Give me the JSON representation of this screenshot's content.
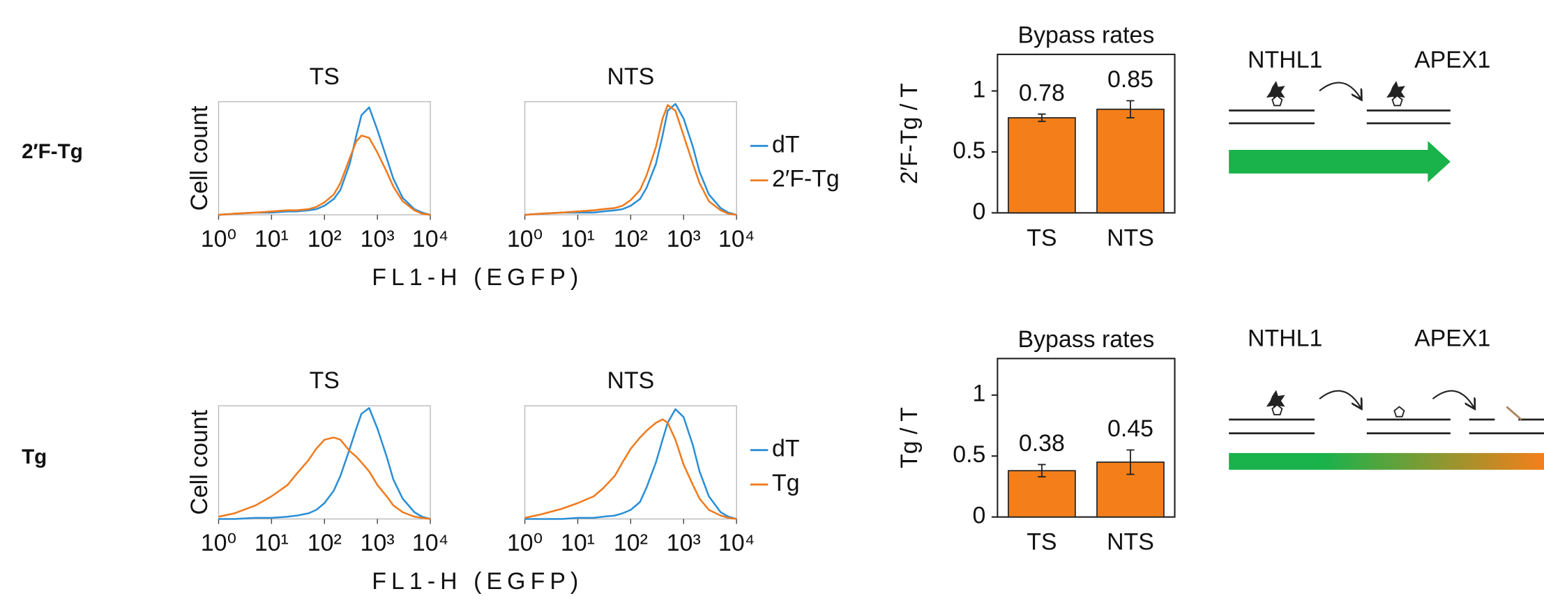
{
  "rows": [
    {
      "label": "2′F-Tg",
      "enzymes": [
        "NTHL1",
        "APEX1"
      ]
    },
    {
      "label": "Tg",
      "enzymes": [
        "NTHL1",
        "APEX1"
      ]
    }
  ],
  "chart_data": [
    {
      "type": "line",
      "log_x": true,
      "xlabel": "FL1-H (EGFP)",
      "ylabel": "Cell count",
      "x": [
        1,
        2,
        5,
        10,
        20,
        30,
        50,
        70,
        100,
        150,
        200,
        300,
        400,
        500,
        700,
        1000,
        1500,
        2000,
        3000,
        5000,
        7000,
        10000
      ],
      "xlim": [
        1,
        10000
      ],
      "xticks": [
        {
          "value": 1,
          "label": "10⁰"
        },
        {
          "value": 10,
          "label": "10¹"
        },
        {
          "value": 100,
          "label": "10²"
        },
        {
          "value": 1000,
          "label": "10³"
        },
        {
          "value": 10000,
          "label": "10⁴"
        }
      ],
      "ylim": [
        0,
        100
      ],
      "legend": {
        "position": "right",
        "entries": [
          {
            "name": "dT",
            "color": "#2b8fd6"
          },
          {
            "name": "2′F-Tg",
            "color": "#f07a1e"
          }
        ]
      },
      "panels": [
        {
          "title": "TS",
          "series": [
            {
              "values": [
                0,
                1,
                2,
                2,
                3,
                3,
                4,
                5,
                8,
                14,
                22,
                45,
                70,
                88,
                95,
                75,
                50,
                32,
                15,
                5,
                2,
                0
              ]
            },
            {
              "values": [
                0,
                1,
                2,
                3,
                4,
                4,
                5,
                7,
                11,
                18,
                28,
                50,
                65,
                70,
                68,
                55,
                38,
                25,
                12,
                4,
                1,
                0
              ]
            }
          ]
        },
        {
          "title": "NTS",
          "series": [
            {
              "values": [
                0,
                1,
                2,
                2,
                2,
                3,
                4,
                5,
                8,
                14,
                24,
                45,
                70,
                92,
                98,
                85,
                60,
                38,
                18,
                6,
                2,
                0
              ]
            },
            {
              "values": [
                0,
                1,
                2,
                3,
                4,
                5,
                6,
                8,
                13,
                22,
                35,
                60,
                85,
                97,
                92,
                70,
                45,
                28,
                12,
                4,
                1,
                0
              ]
            }
          ]
        }
      ]
    },
    {
      "type": "bar",
      "title": "Bypass rates",
      "ylabel": "2′F-Tg / T",
      "categories": [
        "TS",
        "NTS"
      ],
      "values": [
        0.78,
        0.85
      ],
      "errors": [
        0.03,
        0.07
      ],
      "color": "#f47f1a",
      "ylim": [
        0,
        1.3
      ],
      "yticks": [
        0,
        0.5,
        1
      ]
    },
    {
      "type": "line",
      "log_x": true,
      "xlabel": "FL1-H (EGFP)",
      "ylabel": "Cell count",
      "x": [
        1,
        2,
        5,
        10,
        20,
        30,
        50,
        70,
        100,
        150,
        200,
        300,
        400,
        500,
        700,
        1000,
        1500,
        2000,
        3000,
        5000,
        7000,
        10000
      ],
      "xlim": [
        1,
        10000
      ],
      "xticks": [
        {
          "value": 1,
          "label": "10⁰"
        },
        {
          "value": 10,
          "label": "10¹"
        },
        {
          "value": 100,
          "label": "10²"
        },
        {
          "value": 1000,
          "label": "10³"
        },
        {
          "value": 10000,
          "label": "10⁴"
        }
      ],
      "ylim": [
        0,
        100
      ],
      "legend": {
        "position": "right",
        "entries": [
          {
            "name": "dT",
            "color": "#2b8fd6"
          },
          {
            "name": "Tg",
            "color": "#f07a1e"
          }
        ]
      },
      "panels": [
        {
          "title": "TS",
          "series": [
            {
              "values": [
                0,
                0,
                1,
                1,
                2,
                3,
                5,
                8,
                14,
                25,
                38,
                62,
                80,
                93,
                98,
                80,
                55,
                35,
                18,
                6,
                2,
                0
              ]
            },
            {
              "values": [
                2,
                5,
                12,
                20,
                30,
                40,
                52,
                62,
                70,
                72,
                70,
                60,
                55,
                50,
                42,
                30,
                20,
                12,
                6,
                2,
                1,
                0
              ]
            }
          ]
        },
        {
          "title": "NTS",
          "series": [
            {
              "values": [
                0,
                0,
                0,
                1,
                1,
                2,
                3,
                5,
                8,
                15,
                28,
                50,
                70,
                85,
                97,
                90,
                65,
                42,
                20,
                6,
                2,
                0
              ]
            },
            {
              "values": [
                1,
                4,
                9,
                14,
                20,
                27,
                38,
                50,
                62,
                72,
                78,
                85,
                88,
                85,
                70,
                48,
                30,
                18,
                8,
                3,
                1,
                0
              ]
            }
          ]
        }
      ]
    },
    {
      "type": "bar",
      "title": "Bypass rates",
      "ylabel": "Tg / T",
      "categories": [
        "TS",
        "NTS"
      ],
      "values": [
        0.38,
        0.45
      ],
      "errors": [
        0.05,
        0.1
      ],
      "color": "#f47f1a",
      "ylim": [
        0,
        1.3
      ],
      "yticks": [
        0,
        0.5,
        1
      ]
    }
  ]
}
